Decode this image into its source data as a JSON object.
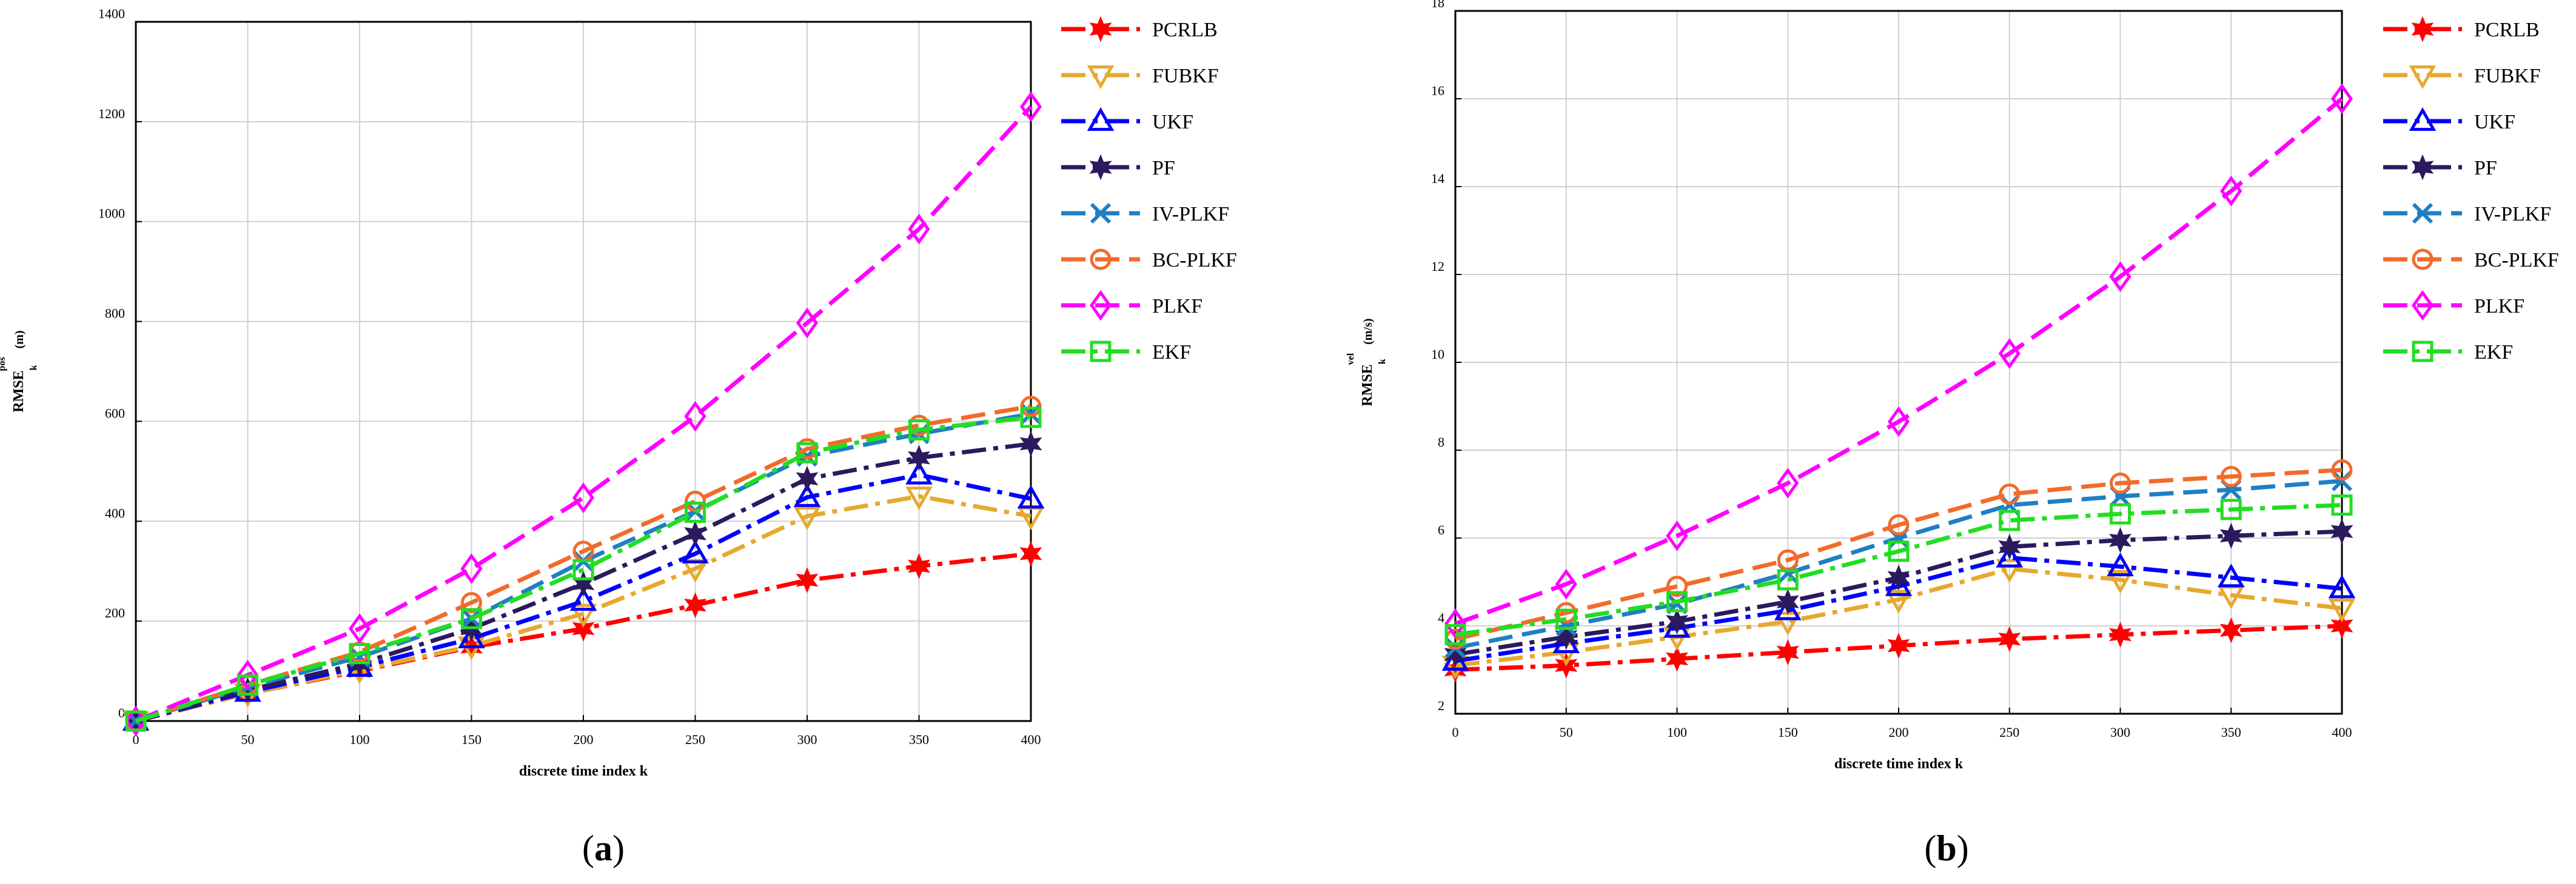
{
  "figure": {
    "panels": [
      {
        "id": "a",
        "label_open": "(",
        "label_letter": "a",
        "label_close": ")"
      },
      {
        "id": "b",
        "label_open": "(",
        "label_letter": "b",
        "label_close": ")"
      }
    ]
  },
  "styles": {
    "PCRLB": {
      "color": "#ff0000",
      "marker": "star6",
      "dash": "dashdot"
    },
    "FUBKF": {
      "color": "#e6a92e",
      "marker": "tri-down",
      "dash": "dashdot"
    },
    "UKF": {
      "color": "#0000ff",
      "marker": "tri-up",
      "dash": "dashdot"
    },
    "PF": {
      "color": "#2b1a5e",
      "marker": "star6",
      "dash": "dashdot"
    },
    "IV-PLKF": {
      "color": "#1f7fc4",
      "marker": "x",
      "dash": "dash"
    },
    "BC-PLKF": {
      "color": "#f26b2a",
      "marker": "circle",
      "dash": "dash"
    },
    "PLKF": {
      "color": "#ff00ff",
      "marker": "diamond",
      "dash": "dash"
    },
    "EKF": {
      "color": "#22dd22",
      "marker": "square",
      "dash": "dashdot"
    }
  },
  "chart_data": [
    {
      "type": "line",
      "panel": "a",
      "title": "",
      "xlabel": "discrete time index k",
      "ylabel_main": "RMSE",
      "ylabel_sub": "k",
      "ylabel_sup": "pos",
      "ylabel_unit": "(m)",
      "x": [
        0,
        50,
        100,
        150,
        200,
        250,
        300,
        350,
        400
      ],
      "xlim": [
        0,
        400
      ],
      "ylim": [
        0,
        1400
      ],
      "xticks": [
        0,
        50,
        100,
        150,
        200,
        250,
        300,
        350,
        400
      ],
      "yticks": [
        0,
        200,
        400,
        600,
        800,
        1000,
        1200,
        1400
      ],
      "grid": true,
      "legend_position": "outside-right",
      "series": [
        {
          "name": "PCRLB",
          "values": [
            0,
            55,
            100,
            148,
            185,
            232,
            282,
            310,
            335
          ]
        },
        {
          "name": "FUBKF",
          "values": [
            0,
            55,
            102,
            150,
            215,
            305,
            410,
            450,
            410
          ]
        },
        {
          "name": "UKF",
          "values": [
            0,
            58,
            108,
            165,
            240,
            335,
            448,
            493,
            445
          ]
        },
        {
          "name": "PF",
          "values": [
            0,
            62,
            115,
            185,
            275,
            375,
            485,
            527,
            555
          ]
        },
        {
          "name": "IV-PLKF",
          "values": [
            0,
            68,
            128,
            205,
            320,
            420,
            530,
            575,
            615
          ]
        },
        {
          "name": "BC-PLKF",
          "values": [
            0,
            72,
            138,
            237,
            340,
            440,
            545,
            592,
            630
          ]
        },
        {
          "name": "PLKF",
          "values": [
            0,
            92,
            185,
            305,
            447,
            610,
            797,
            985,
            1230
          ]
        },
        {
          "name": "EKF",
          "values": [
            0,
            72,
            135,
            205,
            303,
            418,
            537,
            583,
            608
          ]
        }
      ]
    },
    {
      "type": "line",
      "panel": "b",
      "title": "",
      "xlabel": "discrete time index k",
      "ylabel_main": "RMSE",
      "ylabel_sub": "k",
      "ylabel_sup": "vel",
      "ylabel_unit": "(m/s)",
      "x": [
        0,
        50,
        100,
        150,
        200,
        250,
        300,
        350,
        400
      ],
      "xlim": [
        0,
        400
      ],
      "ylim": [
        2,
        18
      ],
      "xticks": [
        0,
        50,
        100,
        150,
        200,
        250,
        300,
        350,
        400
      ],
      "yticks": [
        2,
        4,
        6,
        8,
        10,
        12,
        14,
        16,
        18
      ],
      "grid": true,
      "legend_position": "outside-right",
      "series": [
        {
          "name": "PCRLB",
          "values": [
            3.0,
            3.1,
            3.25,
            3.4,
            3.55,
            3.7,
            3.8,
            3.9,
            4.0
          ]
        },
        {
          "name": "FUBKF",
          "values": [
            3.1,
            3.4,
            3.75,
            4.1,
            4.6,
            5.3,
            5.05,
            4.7,
            4.4
          ]
        },
        {
          "name": "UKF",
          "values": [
            3.2,
            3.6,
            3.95,
            4.35,
            4.9,
            5.55,
            5.35,
            5.1,
            4.85
          ]
        },
        {
          "name": "PF",
          "values": [
            3.35,
            3.75,
            4.1,
            4.55,
            5.1,
            5.8,
            5.95,
            6.05,
            6.15
          ]
        },
        {
          "name": "IV-PLKF",
          "values": [
            3.5,
            4.0,
            4.5,
            5.2,
            6.0,
            6.75,
            6.95,
            7.1,
            7.3
          ]
        },
        {
          "name": "BC-PLKF",
          "values": [
            3.7,
            4.3,
            4.9,
            5.5,
            6.3,
            7.0,
            7.25,
            7.4,
            7.55
          ]
        },
        {
          "name": "PLKF",
          "values": [
            4.05,
            4.95,
            6.05,
            7.25,
            8.65,
            10.2,
            11.95,
            13.9,
            16.0
          ]
        },
        {
          "name": "EKF",
          "values": [
            3.8,
            4.15,
            4.55,
            5.05,
            5.7,
            6.4,
            6.55,
            6.65,
            6.75
          ]
        }
      ]
    }
  ]
}
